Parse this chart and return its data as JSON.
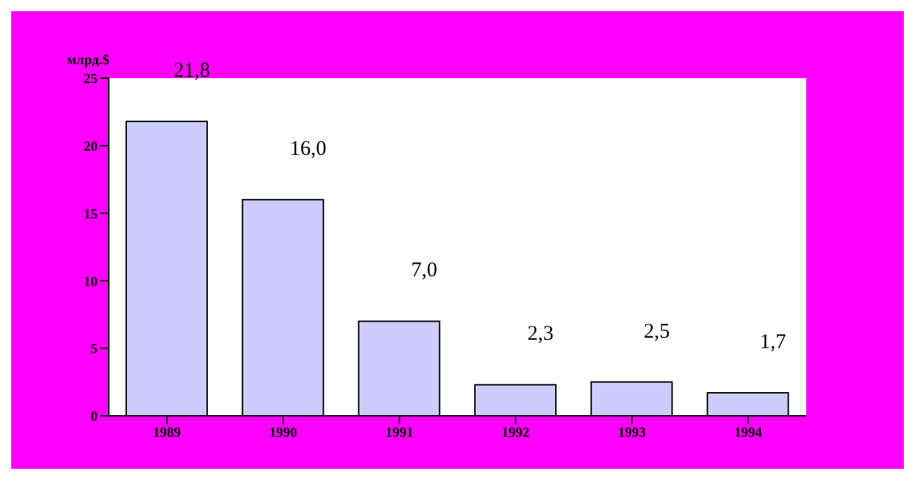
{
  "chart_data": {
    "type": "bar",
    "ylabel": "млрд.$",
    "categories": [
      "1989",
      "1990",
      "1991",
      "1992",
      "1993",
      "1994"
    ],
    "series": [
      {
        "color": "#ccccff",
        "values": [
          21.8,
          16.0,
          7.0,
          2.3,
          2.5,
          1.7
        ],
        "value_labels": [
          "21,8",
          "16,0",
          "7,0",
          "2,3",
          "2,5",
          "1,7"
        ]
      }
    ],
    "ylim": [
      0,
      25
    ],
    "yticks": [
      0,
      5,
      10,
      15,
      20,
      25
    ],
    "grid": false
  }
}
